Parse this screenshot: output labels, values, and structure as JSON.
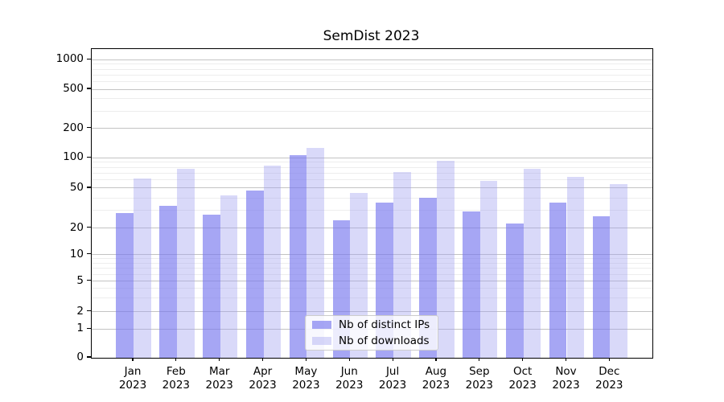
{
  "title": "SemDist 2023",
  "colors": {
    "distinct_ips": "rgba(119,119,238,0.65)",
    "downloads": "rgba(161,161,240,0.40)",
    "grid_major": "#c3c3c3",
    "grid_minor": "#ededed",
    "axis": "#000000"
  },
  "y_axis": {
    "ticks": [
      0,
      1,
      2,
      5,
      10,
      20,
      50,
      100,
      200,
      500,
      1000
    ],
    "minor_ticks": [
      3,
      4,
      6,
      7,
      8,
      9,
      30,
      40,
      60,
      70,
      80,
      90,
      300,
      400,
      600,
      700,
      800,
      900
    ]
  },
  "x_axis": {
    "categories": [
      {
        "month": "Jan",
        "year": "2023"
      },
      {
        "month": "Feb",
        "year": "2023"
      },
      {
        "month": "Mar",
        "year": "2023"
      },
      {
        "month": "Apr",
        "year": "2023"
      },
      {
        "month": "May",
        "year": "2023"
      },
      {
        "month": "Jun",
        "year": "2023"
      },
      {
        "month": "Jul",
        "year": "2023"
      },
      {
        "month": "Aug",
        "year": "2023"
      },
      {
        "month": "Sep",
        "year": "2023"
      },
      {
        "month": "Oct",
        "year": "2023"
      },
      {
        "month": "Nov",
        "year": "2023"
      },
      {
        "month": "Dec",
        "year": "2023"
      }
    ]
  },
  "legend": {
    "items": [
      {
        "label": "Nb of distinct IPs",
        "series": "distinct_ips"
      },
      {
        "label": "Nb of downloads",
        "series": "downloads"
      }
    ]
  },
  "chart_data": {
    "type": "bar",
    "title": "SemDist 2023",
    "categories": [
      "Jan 2023",
      "Feb 2023",
      "Mar 2023",
      "Apr 2023",
      "May 2023",
      "Jun 2023",
      "Jul 2023",
      "Aug 2023",
      "Sep 2023",
      "Oct 2023",
      "Nov 2023",
      "Dec 2023"
    ],
    "series": [
      {
        "name": "Nb of distinct IPs",
        "key": "distinct_ips",
        "values": [
          28,
          33,
          27,
          47,
          107,
          24,
          36,
          40,
          29,
          22,
          36,
          26
        ]
      },
      {
        "name": "Nb of downloads",
        "key": "downloads",
        "values": [
          62,
          78,
          42,
          84,
          125,
          45,
          72,
          94,
          59,
          77,
          64,
          55
        ]
      }
    ],
    "xlabel": "",
    "ylabel": "",
    "yscale": "symlog",
    "yticks": [
      0,
      1,
      2,
      5,
      10,
      20,
      50,
      100,
      200,
      500,
      1000
    ],
    "ylim": [
      0,
      1400
    ],
    "grid": "both",
    "legend_position": "lower center"
  }
}
